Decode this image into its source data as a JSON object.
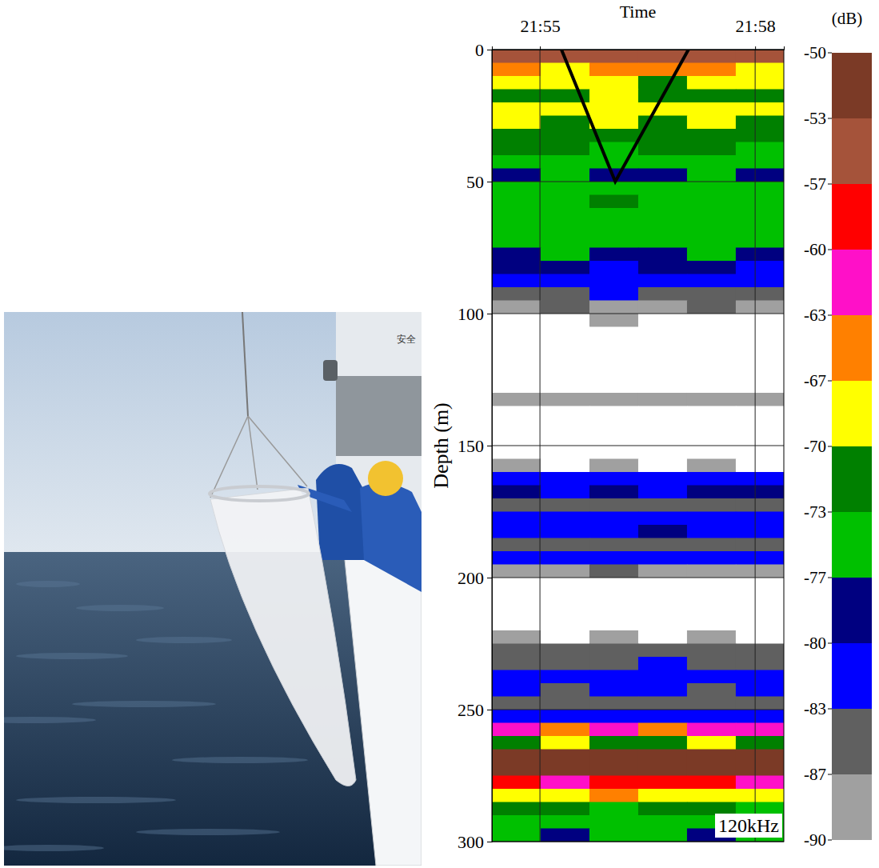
{
  "chart_data": {
    "type": "heatmap",
    "x_label": "Time",
    "y_label": "Depth (m)",
    "xlim": [
      1314.33,
      1318.4
    ],
    "xticks": [
      {
        "value": 1315,
        "label": "21:55"
      },
      {
        "value": 1318,
        "label": "21:58"
      }
    ],
    "ylim": [
      0,
      300
    ],
    "yticks": [
      0,
      50,
      100,
      150,
      200,
      250,
      300
    ],
    "grid": true,
    "annotation": "120kHz",
    "x_edges": [
      1314.33,
      1315.01,
      1315.69,
      1316.37,
      1317.05,
      1317.73,
      1318.4
    ],
    "depth_edges": [
      0,
      5,
      10,
      15,
      20,
      25,
      30,
      35,
      40,
      45,
      50,
      55,
      60,
      65,
      70,
      75,
      80,
      85,
      90,
      95,
      100,
      105,
      110,
      115,
      120,
      125,
      130,
      135,
      140,
      145,
      150,
      155,
      160,
      165,
      170,
      175,
      180,
      185,
      190,
      195,
      200,
      205,
      210,
      215,
      220,
      225,
      230,
      235,
      240,
      245,
      250,
      255,
      260,
      265,
      270,
      275,
      280,
      285,
      290,
      295,
      300
    ],
    "cells": [
      [
        -55,
        -54,
        -56,
        -55,
        -54,
        -55
      ],
      [
        -66,
        -68,
        -65,
        -67,
        -66,
        -68
      ],
      [
        -69,
        -70,
        -68,
        -71,
        -69,
        -70
      ],
      [
        -71,
        -72,
        -70,
        -71,
        -72,
        -71
      ],
      [
        -69,
        -68,
        -70,
        -68,
        -69,
        -70
      ],
      [
        -70,
        -71,
        -69,
        -72,
        -70,
        -71
      ],
      [
        -72,
        -71,
        -73,
        -72,
        -71,
        -72
      ],
      [
        -73,
        -72,
        -74,
        -73,
        -72,
        -74
      ],
      [
        -75,
        -76,
        -74,
        -77,
        -75,
        -76
      ],
      [
        -78,
        -77,
        -79,
        -78,
        -77,
        -78
      ],
      [
        -75,
        -74,
        -76,
        -75,
        -74,
        -76
      ],
      [
        -74,
        -75,
        -73,
        -75,
        -74,
        -75
      ],
      [
        -75,
        -74,
        -76,
        -74,
        -75,
        -74
      ],
      [
        -76,
        -75,
        -76,
        -77,
        -75,
        -76
      ],
      [
        -76,
        -77,
        -75,
        -76,
        -77,
        -76
      ],
      [
        -78,
        -77,
        -79,
        -78,
        -77,
        -78
      ],
      [
        -80,
        -79,
        -81,
        -80,
        -79,
        -81
      ],
      [
        -82,
        -81,
        -82,
        -83,
        -81,
        -82
      ],
      [
        -84,
        -85,
        -83,
        -84,
        -85,
        -84
      ],
      [
        -88,
        -87,
        -89,
        -88,
        -86,
        -88
      ],
      [
        -91,
        -92,
        -90,
        -91,
        -92,
        -91
      ],
      [
        -92,
        -91,
        -92,
        -91,
        -92,
        -92
      ],
      [
        -91,
        -92,
        -91,
        -92,
        -91,
        -92
      ],
      [
        -92,
        -91,
        -92,
        -92,
        -91,
        -91
      ],
      [
        -91,
        -92,
        -92,
        -91,
        -92,
        -91
      ],
      [
        -92,
        -91,
        -91,
        -92,
        -91,
        -92
      ],
      [
        -89,
        -90,
        -88,
        -89,
        -90,
        -89
      ],
      [
        -92,
        -91,
        -92,
        -91,
        -92,
        -92
      ],
      [
        -91,
        -92,
        -91,
        -92,
        -91,
        -91
      ],
      [
        -92,
        -91,
        -92,
        -91,
        -92,
        -91
      ],
      [
        -91,
        -92,
        -91,
        -92,
        -92,
        -91
      ],
      [
        -90,
        -91,
        -90,
        -91,
        -90,
        -91
      ],
      [
        -82,
        -81,
        -82,
        -81,
        -82,
        -81
      ],
      [
        -80,
        -81,
        -80,
        -81,
        -80,
        -79
      ],
      [
        -85,
        -86,
        -84,
        -85,
        -86,
        -85
      ],
      [
        -82,
        -81,
        -83,
        -82,
        -81,
        -82
      ],
      [
        -81,
        -82,
        -81,
        -80,
        -82,
        -81
      ],
      [
        -86,
        -85,
        -86,
        -87,
        -85,
        -86
      ],
      [
        -82,
        -81,
        -82,
        -83,
        -81,
        -82
      ],
      [
        -88,
        -89,
        -87,
        -88,
        -89,
        -88
      ],
      [
        -91,
        -92,
        -91,
        -92,
        -91,
        -92
      ],
      [
        -92,
        -91,
        -92,
        -91,
        -92,
        -91
      ],
      [
        -91,
        -92,
        -91,
        -92,
        -92,
        -91
      ],
      [
        -92,
        -91,
        -92,
        -91,
        -91,
        -92
      ],
      [
        -90,
        -91,
        -90,
        -91,
        -90,
        -91
      ],
      [
        -86,
        -87,
        -85,
        -86,
        -87,
        -86
      ],
      [
        -84,
        -85,
        -84,
        -83,
        -85,
        -84
      ],
      [
        -82,
        -81,
        -82,
        -83,
        -81,
        -82
      ],
      [
        -83,
        -84,
        -82,
        -83,
        -84,
        -83
      ],
      [
        -85,
        -84,
        -85,
        -86,
        -84,
        -85
      ],
      [
        -82,
        -83,
        -82,
        -81,
        -83,
        -82
      ],
      [
        -62,
        -64,
        -61,
        -65,
        -63,
        -62
      ],
      [
        -71,
        -70,
        -72,
        -71,
        -69,
        -71
      ],
      [
        -52,
        -51,
        -52,
        -51,
        -52,
        -51
      ],
      [
        -51,
        -52,
        -51,
        -52,
        -51,
        -52
      ],
      [
        -59,
        -61,
        -58,
        -60,
        -59,
        -61
      ],
      [
        -68,
        -69,
        -67,
        -68,
        -70,
        -68
      ],
      [
        -73,
        -72,
        -74,
        -73,
        -72,
        -74
      ],
      [
        -76,
        -77,
        -75,
        -76,
        -77,
        -76
      ],
      [
        -77,
        -78,
        -76,
        -77,
        -78,
        -77
      ]
    ],
    "series": [
      {
        "type": "line",
        "color": "#000000",
        "line_style": "solid",
        "x": [
          1315.3,
          1316.05,
          1317.07
        ],
        "values": [
          0,
          50,
          0
        ]
      }
    ],
    "colorbar": {
      "label": "(dB)",
      "range": [
        -90,
        -50
      ],
      "ticks": [
        -50,
        -53,
        -57,
        -60,
        -63,
        -67,
        -70,
        -73,
        -77,
        -80,
        -83,
        -87,
        -90
      ],
      "colors": [
        "#7b3a26",
        "#a5533a",
        "#ff0000",
        "#ff10c8",
        "#ff8000",
        "#ffff00",
        "#008000",
        "#00c000",
        "#000080",
        "#0000ff",
        "#606060",
        "#a0a0a0"
      ]
    }
  },
  "photo": {
    "sign": "安全"
  }
}
